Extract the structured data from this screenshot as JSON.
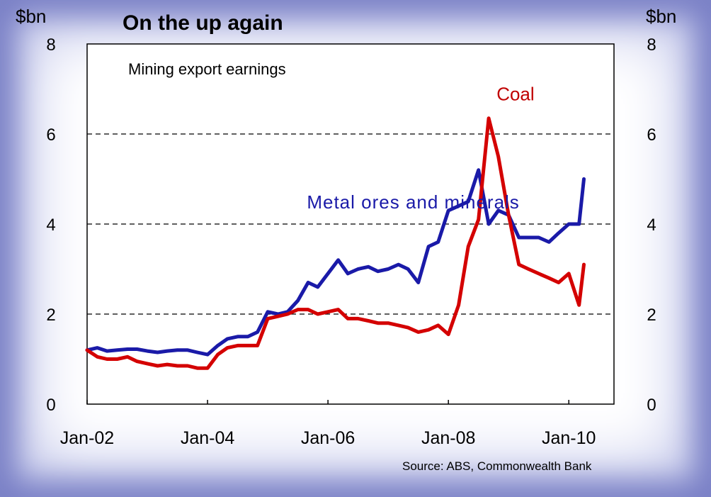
{
  "chart_data": {
    "type": "line",
    "title": "On the up again",
    "subtitle": "Mining export earnings",
    "y_unit_left": "$bn",
    "y_unit_right": "$bn",
    "ylim": [
      0,
      8
    ],
    "yticks": [
      "0",
      "2",
      "4",
      "6",
      "8"
    ],
    "xticks": [
      "Jan-02",
      "Jan-04",
      "Jan-06",
      "Jan-08",
      "Jan-10"
    ],
    "xtick_values": [
      2002.0,
      2004.0,
      2006.0,
      2008.0,
      2010.0
    ],
    "xlim": [
      2002.0,
      2010.75
    ],
    "grid": "dashed horizontal at 2, 4, 6",
    "source": "Source: ABS, Commonwealth Bank",
    "series": [
      {
        "name": "Metal ores and minerals",
        "color": "#1a1aa8",
        "x": [
          2002.0,
          2002.17,
          2002.33,
          2002.5,
          2002.67,
          2002.83,
          2003.0,
          2003.17,
          2003.33,
          2003.5,
          2003.67,
          2003.83,
          2004.0,
          2004.17,
          2004.33,
          2004.5,
          2004.67,
          2004.83,
          2005.0,
          2005.17,
          2005.33,
          2005.5,
          2005.67,
          2005.83,
          2006.0,
          2006.17,
          2006.33,
          2006.5,
          2006.67,
          2006.83,
          2007.0,
          2007.17,
          2007.33,
          2007.5,
          2007.67,
          2007.83,
          2008.0,
          2008.17,
          2008.33,
          2008.5,
          2008.67,
          2008.83,
          2009.0,
          2009.17,
          2009.33,
          2009.5,
          2009.67,
          2009.83,
          2010.0,
          2010.17,
          2010.25
        ],
        "values": [
          1.2,
          1.25,
          1.18,
          1.2,
          1.22,
          1.22,
          1.18,
          1.15,
          1.18,
          1.2,
          1.2,
          1.15,
          1.1,
          1.3,
          1.45,
          1.5,
          1.5,
          1.6,
          2.05,
          2.0,
          2.05,
          2.3,
          2.7,
          2.6,
          2.9,
          3.2,
          2.9,
          3.0,
          3.05,
          2.95,
          3.0,
          3.1,
          3.0,
          2.7,
          3.5,
          3.6,
          4.3,
          4.4,
          4.5,
          5.2,
          4.0,
          4.3,
          4.2,
          3.7,
          3.7,
          3.7,
          3.6,
          3.8,
          4.0,
          4.0,
          5.0
        ]
      },
      {
        "name": "Coal",
        "color": "#d40000",
        "x": [
          2002.0,
          2002.17,
          2002.33,
          2002.5,
          2002.67,
          2002.83,
          2003.0,
          2003.17,
          2003.33,
          2003.5,
          2003.67,
          2003.83,
          2004.0,
          2004.17,
          2004.33,
          2004.5,
          2004.67,
          2004.83,
          2005.0,
          2005.17,
          2005.33,
          2005.5,
          2005.67,
          2005.83,
          2006.0,
          2006.17,
          2006.33,
          2006.5,
          2006.67,
          2006.83,
          2007.0,
          2007.17,
          2007.33,
          2007.5,
          2007.67,
          2007.83,
          2008.0,
          2008.17,
          2008.33,
          2008.5,
          2008.67,
          2008.83,
          2009.0,
          2009.17,
          2009.33,
          2009.5,
          2009.67,
          2009.83,
          2010.0,
          2010.17,
          2010.25
        ],
        "values": [
          1.2,
          1.05,
          1.0,
          1.0,
          1.05,
          0.95,
          0.9,
          0.85,
          0.88,
          0.85,
          0.85,
          0.8,
          0.8,
          1.1,
          1.25,
          1.3,
          1.3,
          1.3,
          1.9,
          1.95,
          2.0,
          2.1,
          2.1,
          2.0,
          2.05,
          2.1,
          1.9,
          1.9,
          1.85,
          1.8,
          1.8,
          1.75,
          1.7,
          1.6,
          1.65,
          1.75,
          1.55,
          2.2,
          3.5,
          4.1,
          6.35,
          5.5,
          4.2,
          3.1,
          3.0,
          2.9,
          2.8,
          2.7,
          2.9,
          2.2,
          3.1
        ]
      }
    ],
    "annotations": [
      {
        "text": "Coal",
        "x": 2008.8,
        "y": 6.75
      },
      {
        "text": "Metal ores and minerals",
        "x": 2005.65,
        "y": 4.35
      }
    ]
  }
}
